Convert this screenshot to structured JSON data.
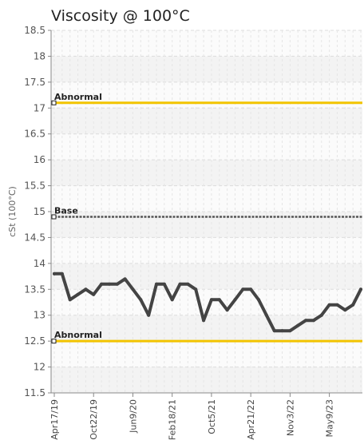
{
  "chart_data": {
    "type": "line",
    "title": "Viscosity @ 100°C",
    "ylabel": "cSt (100°C)",
    "xlabel": "",
    "ylim": [
      11.5,
      18.5
    ],
    "yticks": [
      "11.5",
      "12",
      "12.5",
      "13",
      "13.5",
      "14",
      "14.5",
      "15",
      "15.5",
      "16",
      "16.5",
      "17",
      "17.5",
      "18",
      "18.5"
    ],
    "grid": true,
    "x_tick_labels": [
      "Apr17/19",
      "Oct22/19",
      "Jun9/20",
      "Feb18/21",
      "Oct5/21",
      "Apr21/22",
      "Nov3/22",
      "May9/23"
    ],
    "x_tick_index": [
      0,
      5,
      10,
      15,
      20,
      25,
      30,
      35
    ],
    "series": [
      {
        "values": [
          13.8,
          13.8,
          13.3,
          13.4,
          13.5,
          13.4,
          13.6,
          13.6,
          13.6,
          13.7,
          13.5,
          13.3,
          13.0,
          13.6,
          13.6,
          13.3,
          13.6,
          13.6,
          13.5,
          12.9,
          13.3,
          13.3,
          13.1,
          13.3,
          13.5,
          13.5,
          13.3,
          13.0,
          12.7,
          12.7,
          12.7,
          12.8,
          12.9,
          12.9,
          13.0,
          13.2,
          13.2,
          13.1,
          13.2,
          13.5
        ],
        "color": "#444444"
      }
    ],
    "reference_lines": [
      {
        "label": "Abnormal",
        "value": 17.1,
        "color": "#f2c400",
        "style": "solid"
      },
      {
        "label": "Base",
        "value": 14.9,
        "color": "#555555",
        "style": "dotted"
      },
      {
        "label": "Abnormal",
        "value": 12.5,
        "color": "#f2c400",
        "style": "solid"
      }
    ]
  }
}
